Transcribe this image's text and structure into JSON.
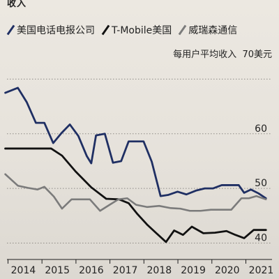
{
  "colors": {
    "verizon": "#1f2f63",
    "tmobile": "#111111",
    "att": "#7b7b7b",
    "grid": "#8d8a85",
    "axis": "#1f1f1f",
    "text": "#222222"
  },
  "chart_data": {
    "type": "line",
    "title": "收入",
    "ylabel": "每用户平均收入",
    "yunit_label": "70美元",
    "legend_position": "top",
    "grid": true,
    "x_ticks": [
      "2014",
      "2015",
      "2016",
      "2017",
      "2018",
      "2019",
      "2020",
      "2021"
    ],
    "y_ticks": [
      {
        "value": 40,
        "label": "40"
      },
      {
        "value": 50,
        "label": "50"
      },
      {
        "value": 60,
        "label": "60"
      },
      {
        "value": 70,
        "label": "每用户平均收入 70美元"
      }
    ],
    "xlim": [
      2013.6,
      2021.4
    ],
    "ylim": [
      37.0,
      73.5
    ],
    "series": [
      {
        "name": "美国电话电报公司",
        "color_key": "verizon",
        "x": [
          2013.55,
          2013.92,
          2014.18,
          2014.45,
          2014.7,
          2014.96,
          2015.2,
          2015.45,
          2015.7,
          2015.95,
          2016.08,
          2016.22,
          2016.48,
          2016.72,
          2016.96,
          2017.18,
          2017.4,
          2017.62,
          2017.86,
          2018.12,
          2018.34,
          2018.62,
          2018.88,
          2019.16,
          2019.42,
          2019.66,
          2019.92,
          2020.2,
          2020.42,
          2020.58,
          2020.78,
          2021.0,
          2021.22
        ],
        "y": [
          67.5,
          68.4,
          65.8,
          62.0,
          62.0,
          58.3,
          60.1,
          61.7,
          59.6,
          55.9,
          54.6,
          59.7,
          60.0,
          54.7,
          55.0,
          58.6,
          58.6,
          58.6,
          54.9,
          48.6,
          48.8,
          49.4,
          48.9,
          49.6,
          50.0,
          50.0,
          50.6,
          50.6,
          50.6,
          49.2,
          49.8,
          49.1,
          48.2
        ]
      },
      {
        "name": "T-Mobile美国",
        "color_key": "tmobile",
        "x": [
          2013.55,
          2014.26,
          2014.6,
          2014.9,
          2015.22,
          2015.62,
          2016.08,
          2016.52,
          2016.9,
          2017.18,
          2017.44,
          2017.72,
          2017.98,
          2018.28,
          2018.52,
          2018.78,
          2019.04,
          2019.38,
          2019.72,
          2020.06,
          2020.32,
          2020.58,
          2020.86,
          2021.22
        ],
        "y": [
          57.3,
          57.3,
          57.3,
          57.3,
          56.0,
          53.1,
          50.2,
          48.1,
          48.0,
          47.3,
          45.3,
          43.4,
          41.9,
          40.2,
          42.3,
          41.5,
          43.0,
          41.8,
          41.9,
          42.2,
          41.5,
          40.9,
          42.4,
          42.4
        ]
      },
      {
        "name": "威瑞森通信",
        "color_key": "att",
        "x": [
          2013.55,
          2013.92,
          2014.22,
          2014.5,
          2014.7,
          2014.98,
          2015.22,
          2015.5,
          2015.72,
          2016.04,
          2016.34,
          2016.62,
          2016.88,
          2017.14,
          2017.4,
          2017.72,
          2018.08,
          2018.42,
          2018.7,
          2018.98,
          2019.3,
          2019.6,
          2019.9,
          2020.2,
          2020.5,
          2020.72,
          2020.94,
          2021.22
        ],
        "y": [
          52.6,
          50.5,
          50.1,
          49.8,
          50.3,
          48.5,
          46.3,
          48.0,
          48.0,
          48.0,
          45.9,
          47.0,
          48.0,
          48.2,
          47.0,
          46.6,
          46.8,
          46.4,
          46.3,
          45.9,
          45.9,
          46.1,
          46.1,
          46.1,
          48.2,
          48.2,
          48.6,
          48.0
        ]
      }
    ]
  }
}
